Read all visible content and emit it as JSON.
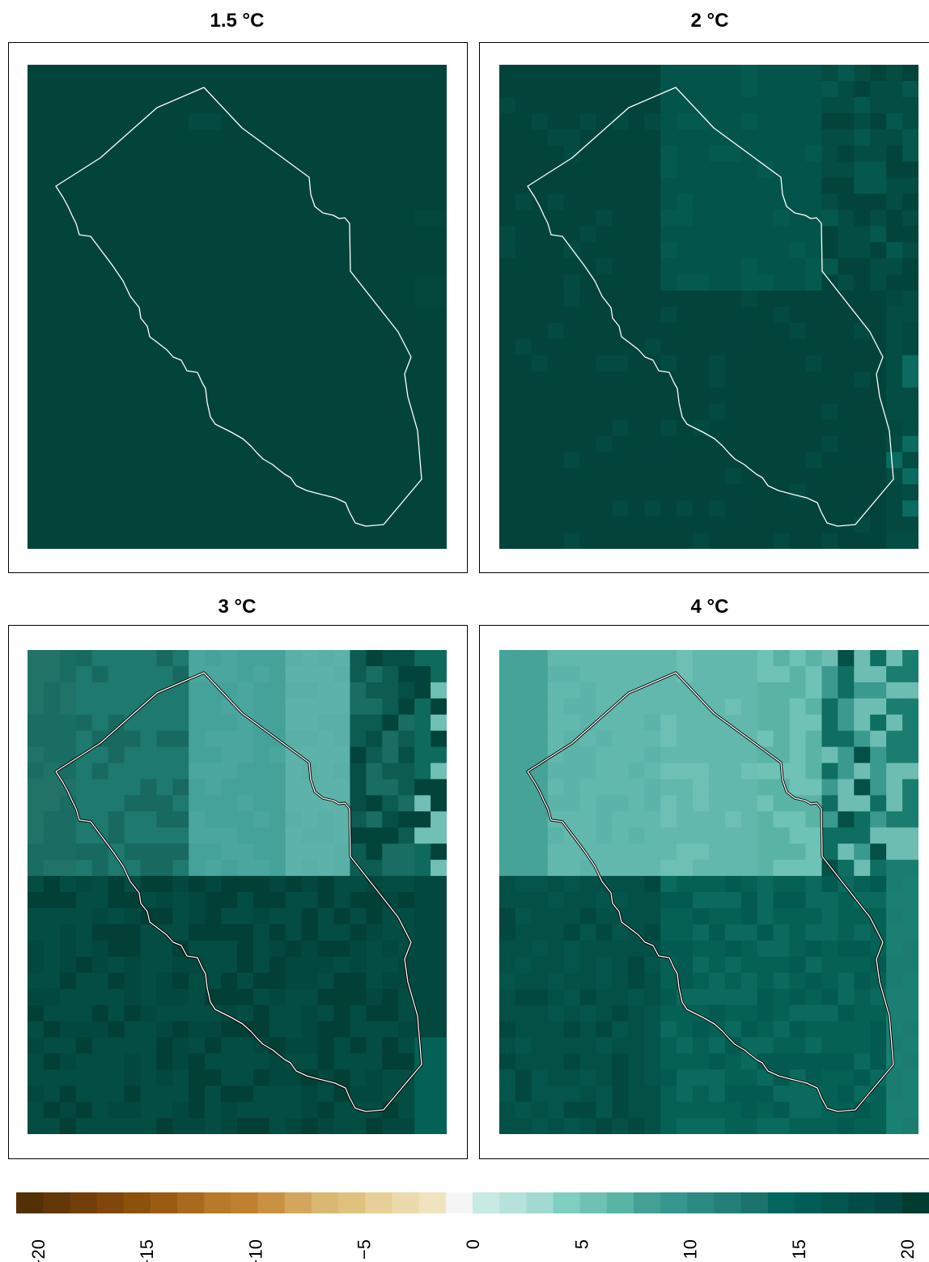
{
  "panels": [
    {
      "title": "1.5 °C",
      "base_color": "#02443a"
    },
    {
      "title": "2 °C",
      "base_color": "#02443a"
    },
    {
      "title": "3 °C",
      "base_color": "#02443a"
    },
    {
      "title": "4 °C",
      "base_color": "#035a50"
    }
  ],
  "legend": {
    "ticks": [
      "−20",
      "−15",
      "−10",
      "−5",
      "0",
      "5",
      "10",
      "15",
      "20"
    ],
    "min": -21,
    "max": 21,
    "colors": [
      "#543005",
      "#633708",
      "#723f0a",
      "#7f470c",
      "#8c510a",
      "#9a5c12",
      "#a86a1c",
      "#b67a28",
      "#bf812d",
      "#c99243",
      "#d2a65d",
      "#dab872",
      "#dfc27d",
      "#e6cf98",
      "#ebdbac",
      "#f0e4c0",
      "#f5f5f5",
      "#c7eae5",
      "#b5e2db",
      "#a2dad2",
      "#80cdc1",
      "#6ec1b4",
      "#5ab4a6",
      "#45a096",
      "#35978f",
      "#2b8b83",
      "#237f77",
      "#1b736b",
      "#01665e",
      "#015e56",
      "#01564e",
      "#014e46",
      "#014640",
      "#003c30"
    ]
  }
}
